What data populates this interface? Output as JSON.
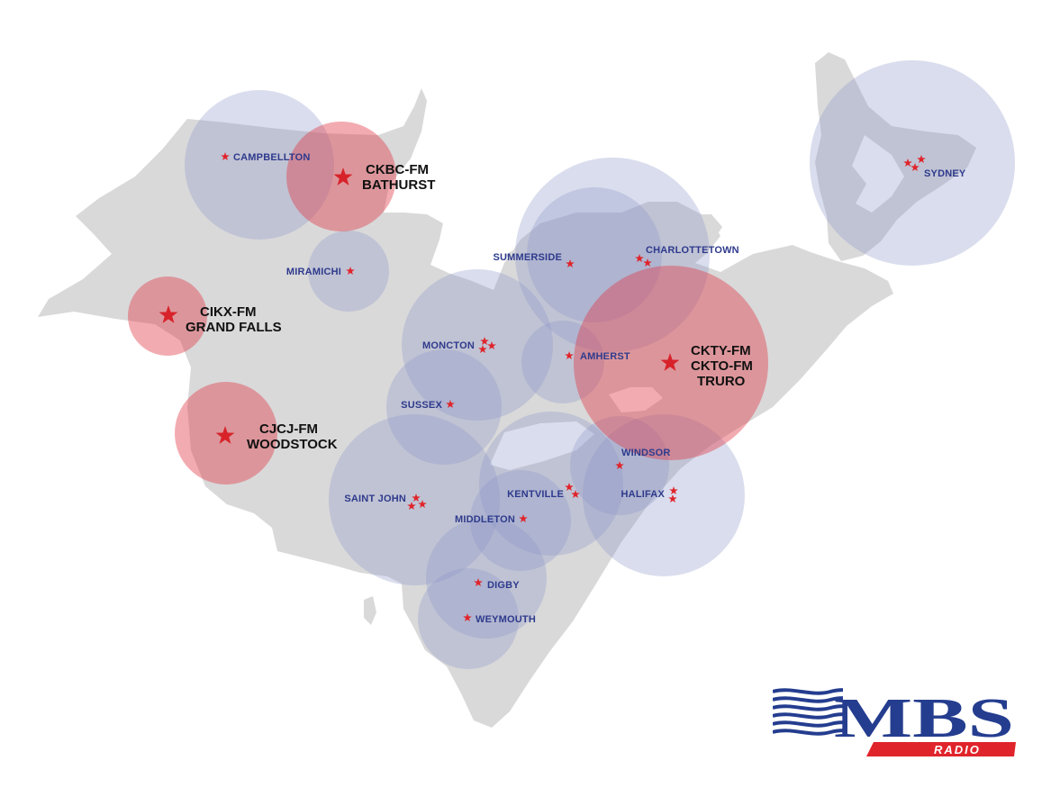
{
  "colors": {
    "land": "#d9d9da",
    "coverage_blue": "#8b96c6",
    "coverage_red": "#e03a44",
    "star": "#e0242b",
    "city_label": "#2e3a8c",
    "station_label": "#111111",
    "logo_blue": "#243d8f",
    "logo_red": "#e0242b"
  },
  "cities": [
    {
      "id": "campbellton",
      "name": "CAMPBELLTON"
    },
    {
      "id": "miramichi",
      "name": "MIRAMICHI"
    },
    {
      "id": "summerside",
      "name": "SUMMERSIDE"
    },
    {
      "id": "charlottetown",
      "name": "CHARLOTTETOWN"
    },
    {
      "id": "sydney",
      "name": "SYDNEY"
    },
    {
      "id": "moncton",
      "name": "MONCTON"
    },
    {
      "id": "amherst",
      "name": "AMHERST"
    },
    {
      "id": "sussex",
      "name": "SUSSEX"
    },
    {
      "id": "windsor",
      "name": "WINDSOR"
    },
    {
      "id": "saint-john",
      "name": "SAINT JOHN"
    },
    {
      "id": "kentville",
      "name": "KENTVILLE"
    },
    {
      "id": "halifax",
      "name": "HALIFAX"
    },
    {
      "id": "middleton",
      "name": "MIDDLETON"
    },
    {
      "id": "digby",
      "name": "DIGBY"
    },
    {
      "id": "weymouth",
      "name": "WEYMOUTH"
    }
  ],
  "stations": [
    {
      "id": "bathurst",
      "lines": [
        "CKBC-FM",
        "BATHURST"
      ]
    },
    {
      "id": "grand-falls",
      "lines": [
        "CIKX-FM",
        "GRAND FALLS"
      ]
    },
    {
      "id": "woodstock",
      "lines": [
        "CJCJ-FM",
        "WOODSTOCK"
      ]
    },
    {
      "id": "truro",
      "lines": [
        "CKTY-FM",
        "CKTO-FM",
        "TRURO"
      ]
    }
  ],
  "logo": {
    "wordmark": "MBS",
    "subtitle": "RADIO"
  }
}
